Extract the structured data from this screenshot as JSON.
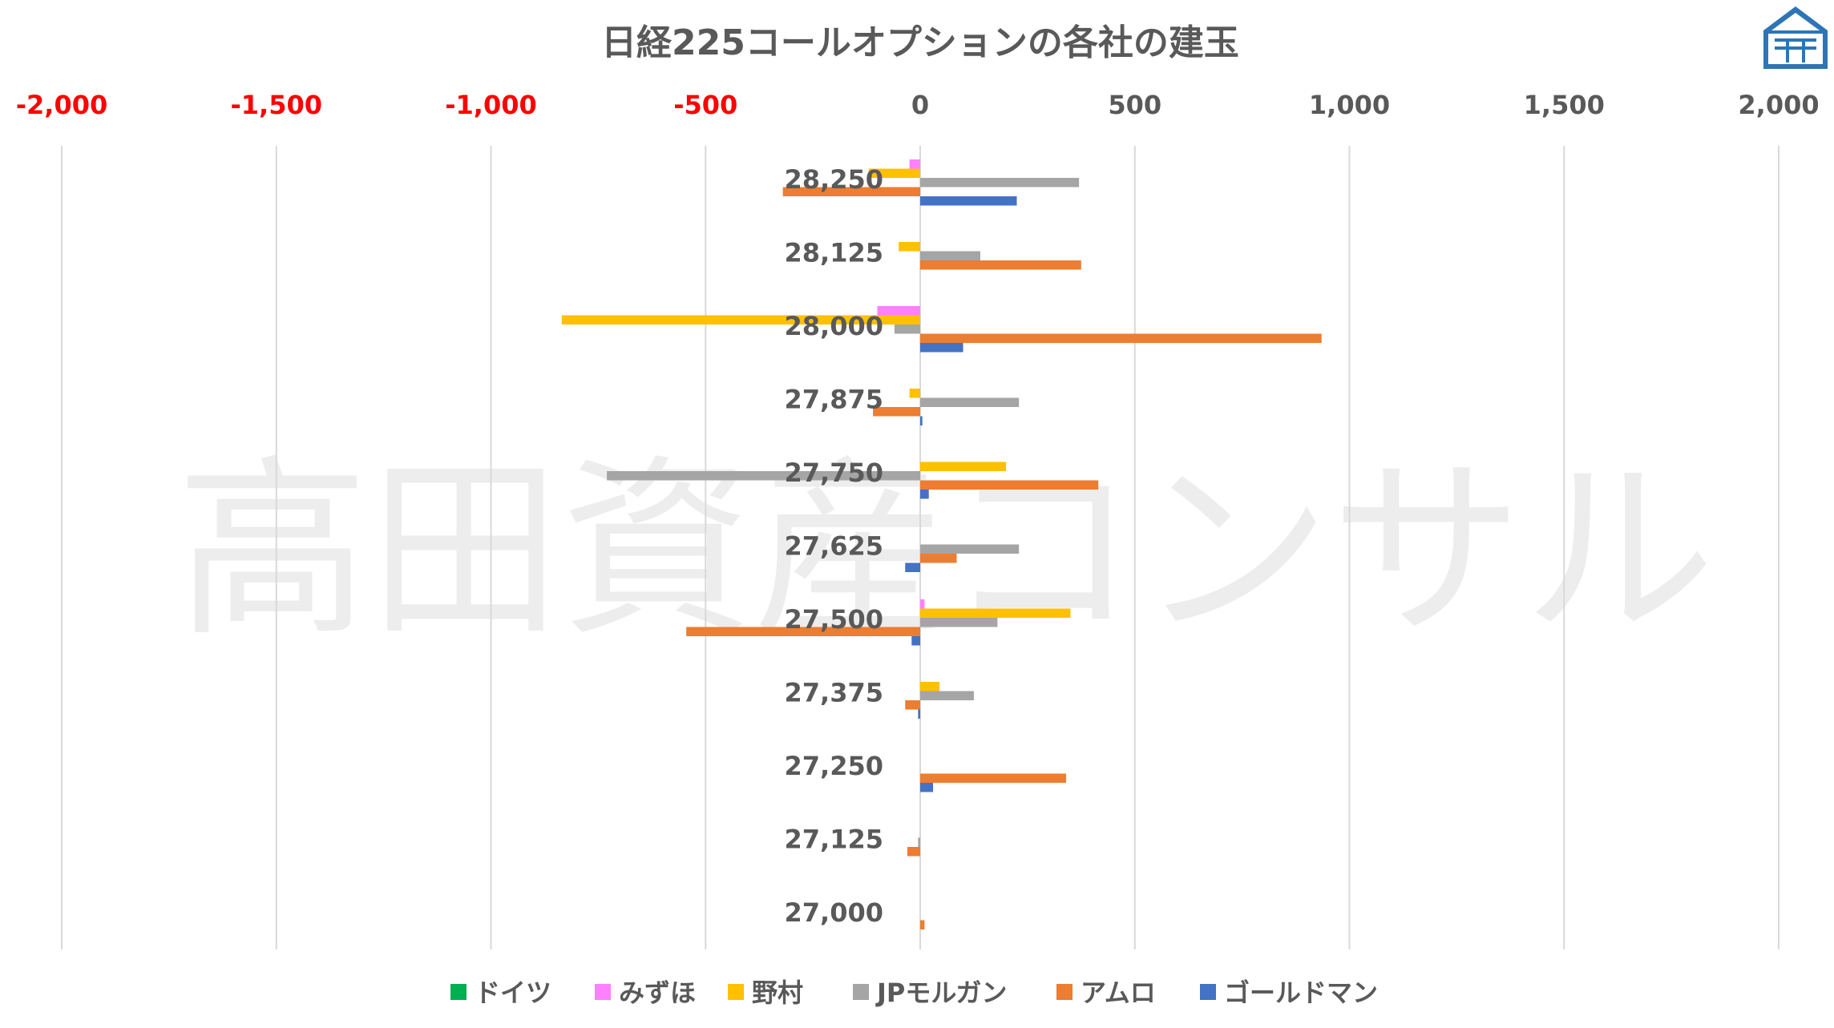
{
  "chart_data": {
    "type": "bar",
    "orientation": "horizontal",
    "title": "日経225コールオプションの各社の建玉",
    "watermark": "高田資産コンサル",
    "x_ticks": [
      "-2,000",
      "-1,500",
      "-1,000",
      "-500",
      "0",
      "500",
      "1,000",
      "1,500",
      "2,000"
    ],
    "xlim": [
      -2000,
      2000
    ],
    "negative_tick_color": "#ff0000",
    "positive_tick_color": "#595959",
    "grid": true,
    "legend_position": "bottom",
    "categories": [
      "28,250",
      "28,125",
      "28,000",
      "27,875",
      "27,750",
      "27,625",
      "27,500",
      "27,375",
      "27,250",
      "27,125",
      "27,000"
    ],
    "series": [
      {
        "name": "ドイツ",
        "color": "#00b050",
        "values": [
          0,
          0,
          0,
          0,
          0,
          0,
          0,
          0,
          0,
          0,
          0
        ]
      },
      {
        "name": "みずほ",
        "color": "#ff80ff",
        "values": [
          -25,
          0,
          -100,
          0,
          0,
          0,
          10,
          0,
          0,
          0,
          0
        ]
      },
      {
        "name": "野村",
        "color": "#ffc000",
        "values": [
          -120,
          -50,
          -835,
          -25,
          200,
          0,
          350,
          45,
          0,
          0,
          0
        ]
      },
      {
        "name": "JPモルガン",
        "color": "#a5a5a5",
        "values": [
          370,
          140,
          -60,
          230,
          -730,
          230,
          180,
          125,
          0,
          -5,
          0
        ]
      },
      {
        "name": "アムロ",
        "color": "#ed7d31",
        "values": [
          -320,
          375,
          935,
          -110,
          415,
          85,
          -545,
          -35,
          340,
          -30,
          10
        ]
      },
      {
        "name": "ゴールドマン",
        "color": "#4472c4",
        "values": [
          225,
          0,
          100,
          5,
          20,
          -35,
          -20,
          -5,
          30,
          0,
          0
        ]
      }
    ]
  }
}
